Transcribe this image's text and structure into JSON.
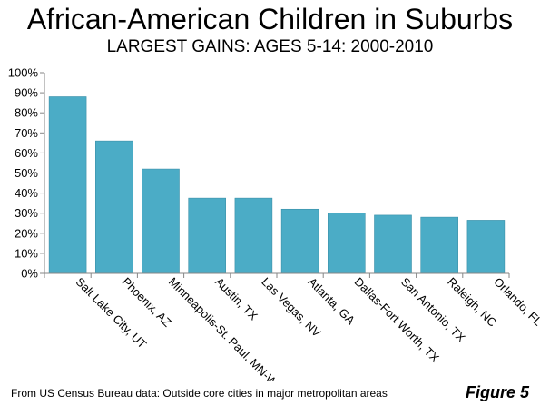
{
  "title": "African-American Children in Suburbs",
  "subtitle": "LARGEST GAINS: AGES 5-14: 2000-2010",
  "footnote": "From US Census Bureau data: Outside core cities in major metropolitan areas",
  "figure_label": "Figure 5",
  "colors": {
    "bar": "#4BACC6",
    "bar_edge": "#3A8FA7",
    "axis": "#868686"
  },
  "chart_data": {
    "type": "bar",
    "title": "African-American Children in Suburbs",
    "subtitle": "LARGEST GAINS: AGES 5-14: 2000-2010",
    "xlabel": "",
    "ylabel": "",
    "ylim": [
      0,
      100
    ],
    "ytick_step": 10,
    "ytick_suffix": "%",
    "grid": false,
    "legend": "none",
    "categories": [
      "Salt Lake City, UT",
      "Phoenix, AZ",
      "Minneapolis-St. Paul, MN-WI",
      "Austin, TX",
      "Las Vegas, NV",
      "Atlanta, GA",
      "Dallas-Fort Worth, TX",
      "San Antonio, TX",
      "Raleigh, NC",
      "Orlando, FL"
    ],
    "values": [
      88,
      66,
      52,
      37.5,
      37.5,
      32,
      30,
      29,
      28,
      26.5
    ]
  }
}
